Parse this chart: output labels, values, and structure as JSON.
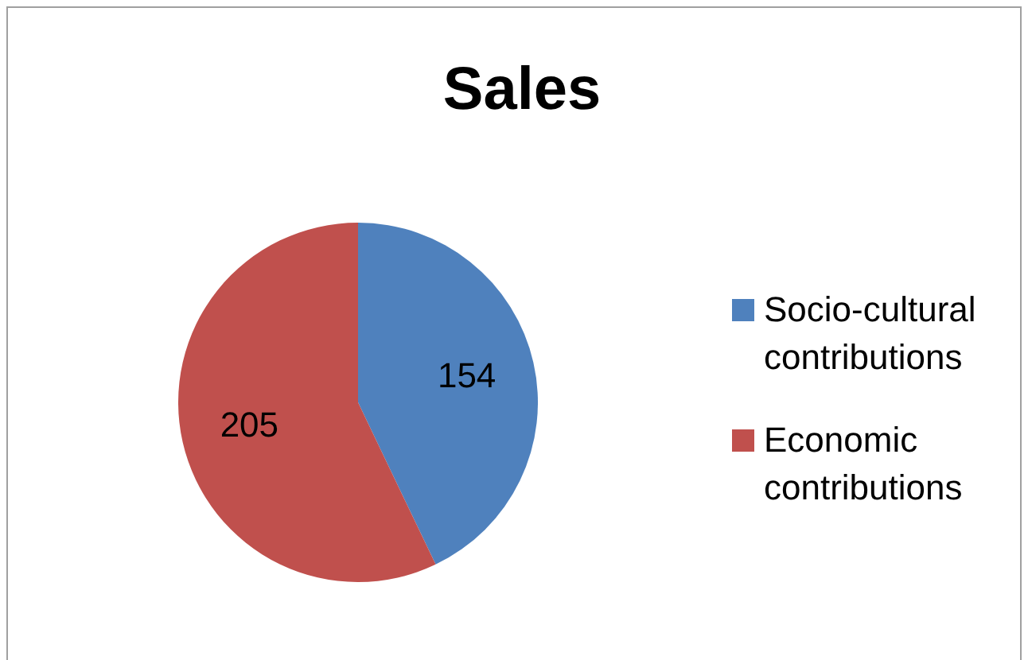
{
  "chart_data": {
    "type": "pie",
    "title": "Sales",
    "categories": [
      "Socio-cultural contributions",
      "Economic contributions"
    ],
    "values": [
      154,
      205
    ],
    "colors": [
      "#4f81bd",
      "#c0504d"
    ],
    "data_labels": true,
    "legend": "right"
  }
}
